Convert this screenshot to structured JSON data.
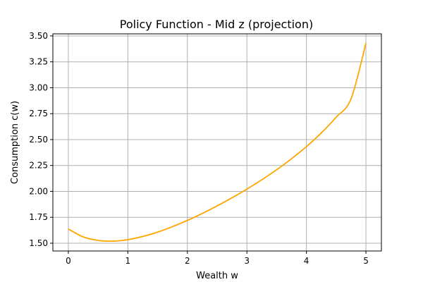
{
  "chart_data": {
    "type": "line",
    "title": "Policy Function - Mid z (projection)",
    "xlabel": "Wealth w",
    "ylabel": "Consumption c(w)",
    "xlim": [
      -0.26,
      5.26
    ],
    "ylim": [
      1.425,
      3.52
    ],
    "xticks": [
      0,
      1,
      2,
      3,
      4,
      5
    ],
    "xtick_labels": [
      "0",
      "1",
      "2",
      "3",
      "4",
      "5"
    ],
    "yticks": [
      1.5,
      1.75,
      2.0,
      2.25,
      2.5,
      2.75,
      3.0,
      3.25,
      3.5
    ],
    "ytick_labels": [
      "1.50",
      "1.75",
      "2.00",
      "2.25",
      "2.50",
      "2.75",
      "3.00",
      "3.25",
      "3.50"
    ],
    "grid": true,
    "series": [
      {
        "color": "#ffa500",
        "x": [
          0.0,
          0.25,
          0.5,
          0.75,
          1.0,
          1.25,
          1.5,
          1.75,
          2.0,
          2.25,
          2.5,
          2.75,
          3.0,
          3.25,
          3.5,
          3.75,
          4.0,
          4.25,
          4.5,
          4.75,
          5.0
        ],
        "y": [
          1.637,
          1.561,
          1.527,
          1.52,
          1.534,
          1.565,
          1.607,
          1.66,
          1.72,
          1.787,
          1.86,
          1.938,
          2.022,
          2.112,
          2.209,
          2.315,
          2.432,
          2.564,
          2.716,
          2.894,
          3.43
        ]
      }
    ]
  }
}
